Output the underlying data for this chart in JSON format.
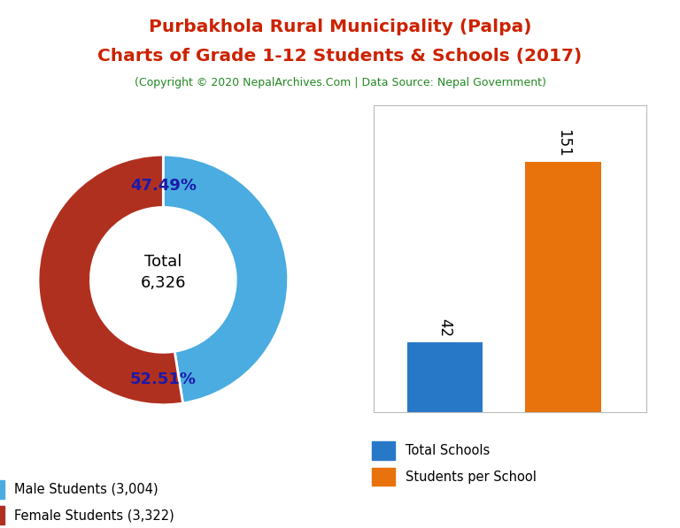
{
  "title_line1": "Purbakhola Rural Municipality (Palpa)",
  "title_line2": "Charts of Grade 1-12 Students & Schools (2017)",
  "subtitle": "(Copyright © 2020 NepalArchives.Com | Data Source: Nepal Government)",
  "title_color": "#cc2200",
  "subtitle_color": "#228822",
  "donut_values": [
    3004,
    3322
  ],
  "donut_colors": [
    "#4aace0",
    "#b03020"
  ],
  "donut_labels": [
    "47.49%",
    "52.51%"
  ],
  "donut_center_text": "Total\n6,326",
  "legend_donut": [
    "Male Students (3,004)",
    "Female Students (3,322)"
  ],
  "bar_values": [
    42,
    151
  ],
  "bar_colors": [
    "#2878c8",
    "#e8720c"
  ],
  "bar_labels": [
    "Total Schools",
    "Students per School"
  ],
  "background_color": "#ffffff",
  "label_color": "#1a1aaa"
}
